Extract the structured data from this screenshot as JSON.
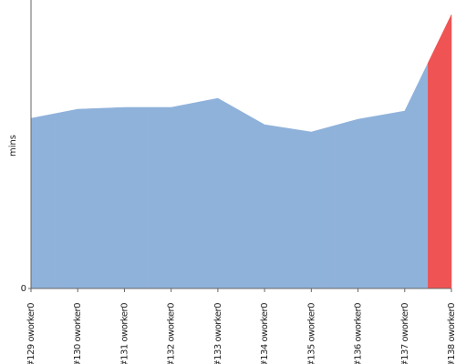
{
  "chart_data": {
    "type": "area",
    "y_label": "mins",
    "categories": [
      "#129 oworker0",
      "#130 oworker0",
      "#131 oworker0",
      "#132 oworker0",
      "#133 oworker0",
      "#134 oworker0",
      "#135 oworker0",
      "#136 oworker0",
      "#137 oworker0",
      "#138 oworker0"
    ],
    "values": [
      18.7,
      19.7,
      19.9,
      19.9,
      20.9,
      18.0,
      17.2,
      18.6,
      19.5,
      30.1
    ],
    "colors": [
      "#8fb2db",
      "#8fb2db",
      "#8fb2db",
      "#8fb2db",
      "#8fb2db",
      "#8fb2db",
      "#8fb2db",
      "#8fb2db",
      "#8fb2db",
      "#ef5353"
    ],
    "ylim": [
      0,
      31.7
    ],
    "yticks": [
      0
    ]
  }
}
